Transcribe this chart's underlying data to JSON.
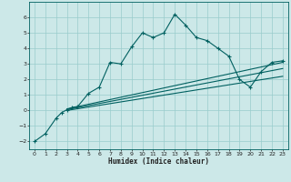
{
  "xlabel": "Humidex (Indice chaleur)",
  "background_color": "#cce8e8",
  "grid_color": "#99cccc",
  "line_color": "#006060",
  "xlim": [
    -0.5,
    23.5
  ],
  "ylim": [
    -2.5,
    7.0
  ],
  "xticks": [
    0,
    1,
    2,
    3,
    4,
    5,
    6,
    7,
    8,
    9,
    10,
    11,
    12,
    13,
    14,
    15,
    16,
    17,
    18,
    19,
    20,
    21,
    22,
    23
  ],
  "yticks": [
    -2,
    -1,
    0,
    1,
    2,
    3,
    4,
    5,
    6
  ],
  "main_x": [
    0,
    1,
    2,
    2.5,
    3,
    3.5,
    4,
    5,
    6,
    7,
    8,
    9,
    10,
    11,
    12,
    13,
    14,
    15,
    16,
    17,
    18,
    19,
    20,
    21,
    22,
    23
  ],
  "main_y": [
    -2.0,
    -1.5,
    -0.5,
    -0.15,
    0.05,
    0.2,
    0.25,
    1.1,
    1.5,
    3.1,
    3.0,
    4.1,
    5.0,
    4.7,
    5.0,
    6.2,
    5.5,
    4.7,
    4.5,
    4.0,
    3.5,
    2.0,
    1.5,
    2.5,
    3.1,
    3.2
  ],
  "line1_x": [
    3,
    23
  ],
  "line1_y": [
    0.1,
    3.1
  ],
  "line2_x": [
    3,
    23
  ],
  "line2_y": [
    0.05,
    2.7
  ],
  "line3_x": [
    3,
    23
  ],
  "line3_y": [
    0.0,
    2.2
  ],
  "tick_fontsize": 4.5,
  "xlabel_fontsize": 5.5,
  "font_color": "#222222"
}
